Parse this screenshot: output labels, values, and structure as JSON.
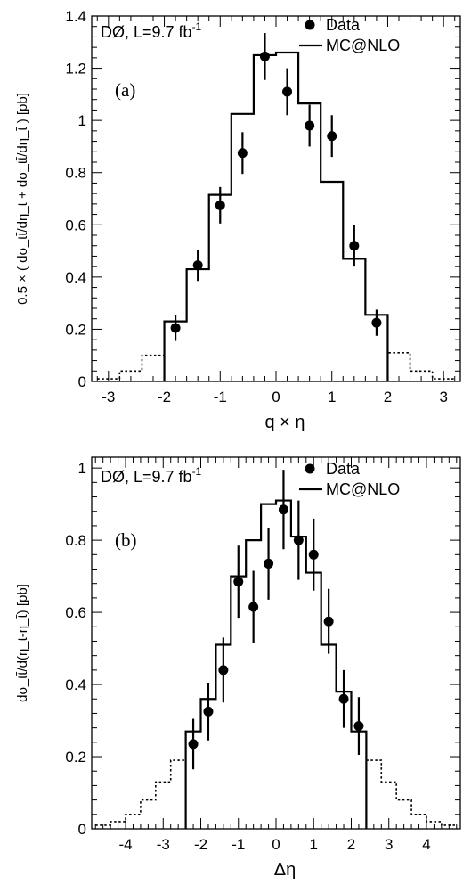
{
  "chart_data": [
    {
      "type": "line",
      "panel_label": "(a)",
      "experiment_label": "DØ, L=9.7 fb",
      "experiment_label_sup": "-1",
      "xlabel": "q × η",
      "ylabel": "0.5 × ( dσ_tt̄/dη_t + dσ_tt̄/dη_t̄ ) [pb]",
      "xlim": [
        -3.3,
        3.3
      ],
      "ylim": [
        0,
        1.4
      ],
      "xticks": [
        -3,
        -2,
        -1,
        0,
        1,
        2,
        3
      ],
      "xtick_labels": [
        "-3",
        "-2",
        "-1",
        "0",
        "1",
        "2",
        "3"
      ],
      "yticks": [
        0,
        0.2,
        0.4,
        0.6,
        0.8,
        1,
        1.2,
        1.4
      ],
      "ytick_labels": [
        "0",
        "0.2",
        "0.4",
        "0.6",
        "0.8",
        "1",
        "1.2",
        "1.4"
      ],
      "legend": [
        {
          "marker": "dot",
          "label": "Data"
        },
        {
          "marker": "line",
          "label": "MC@NLO"
        }
      ],
      "legend_position": "top-right",
      "series": [
        {
          "name": "Data",
          "x": [
            -1.8,
            -1.4,
            -1.0,
            -0.6,
            -0.2,
            0.2,
            0.6,
            1.0,
            1.4,
            1.8
          ],
          "y": [
            0.205,
            0.445,
            0.675,
            0.875,
            1.245,
            1.11,
            0.98,
            0.94,
            0.52,
            0.225
          ],
          "err": [
            0.05,
            0.06,
            0.07,
            0.08,
            0.09,
            0.09,
            0.08,
            0.08,
            0.08,
            0.05
          ]
        },
        {
          "name": "MC@NLO",
          "bin_edges": [
            -3.2,
            -2.8,
            -2.4,
            -2.0,
            -1.6,
            -1.2,
            -0.8,
            -0.4,
            0.0,
            0.4,
            0.8,
            1.2,
            1.6,
            2.0,
            2.4,
            2.8,
            3.2
          ],
          "values": [
            0.01,
            0.04,
            0.1,
            0.23,
            0.43,
            0.715,
            1.025,
            1.25,
            1.26,
            1.065,
            0.765,
            0.47,
            0.255,
            0.11,
            0.04,
            0.01
          ],
          "solid_bins": [
            3,
            12
          ]
        }
      ]
    },
    {
      "type": "line",
      "panel_label": "(b)",
      "experiment_label": "DØ, L=9.7 fb",
      "experiment_label_sup": "-1",
      "xlabel": "Δη",
      "ylabel": "dσ_tt̄/d(η_t-η_t̄) [pb]",
      "xlim": [
        -4.9,
        4.9
      ],
      "ylim": [
        0,
        1.03
      ],
      "xticks": [
        -4,
        -3,
        -2,
        -1,
        0,
        1,
        2,
        3,
        4
      ],
      "xtick_labels": [
        "-4",
        "-3",
        "-2",
        "-1",
        "0",
        "1",
        "2",
        "3",
        "4"
      ],
      "yticks": [
        0,
        0.2,
        0.4,
        0.6,
        0.8,
        1
      ],
      "ytick_labels": [
        "0",
        "0.2",
        "0.4",
        "0.6",
        "0.8",
        "1"
      ],
      "legend": [
        {
          "marker": "dot",
          "label": "Data"
        },
        {
          "marker": "line",
          "label": "MC@NLO"
        }
      ],
      "legend_position": "top-right",
      "series": [
        {
          "name": "Data",
          "x": [
            -2.2,
            -1.8,
            -1.4,
            -1.0,
            -0.6,
            -0.2,
            0.2,
            0.6,
            1.0,
            1.4,
            1.8,
            2.2
          ],
          "y": [
            0.235,
            0.325,
            0.44,
            0.685,
            0.615,
            0.735,
            0.885,
            0.8,
            0.76,
            0.575,
            0.36,
            0.285
          ],
          "err": [
            0.07,
            0.08,
            0.09,
            0.1,
            0.1,
            0.1,
            0.11,
            0.11,
            0.1,
            0.09,
            0.08,
            0.08
          ]
        },
        {
          "name": "MC@NLO",
          "bin_edges": [
            -4.8,
            -4.4,
            -4.0,
            -3.6,
            -3.2,
            -2.8,
            -2.4,
            -2.0,
            -1.6,
            -1.2,
            -0.8,
            -0.4,
            0.0,
            0.4,
            0.8,
            1.2,
            1.6,
            2.0,
            2.4,
            2.8,
            3.2,
            3.6,
            4.0,
            4.4,
            4.8
          ],
          "values": [
            0.01,
            0.02,
            0.04,
            0.08,
            0.13,
            0.19,
            0.27,
            0.36,
            0.51,
            0.7,
            0.8,
            0.9,
            0.91,
            0.81,
            0.71,
            0.51,
            0.38,
            0.27,
            0.19,
            0.13,
            0.08,
            0.04,
            0.02,
            0.01
          ],
          "solid_bins": [
            6,
            17
          ]
        }
      ]
    }
  ]
}
